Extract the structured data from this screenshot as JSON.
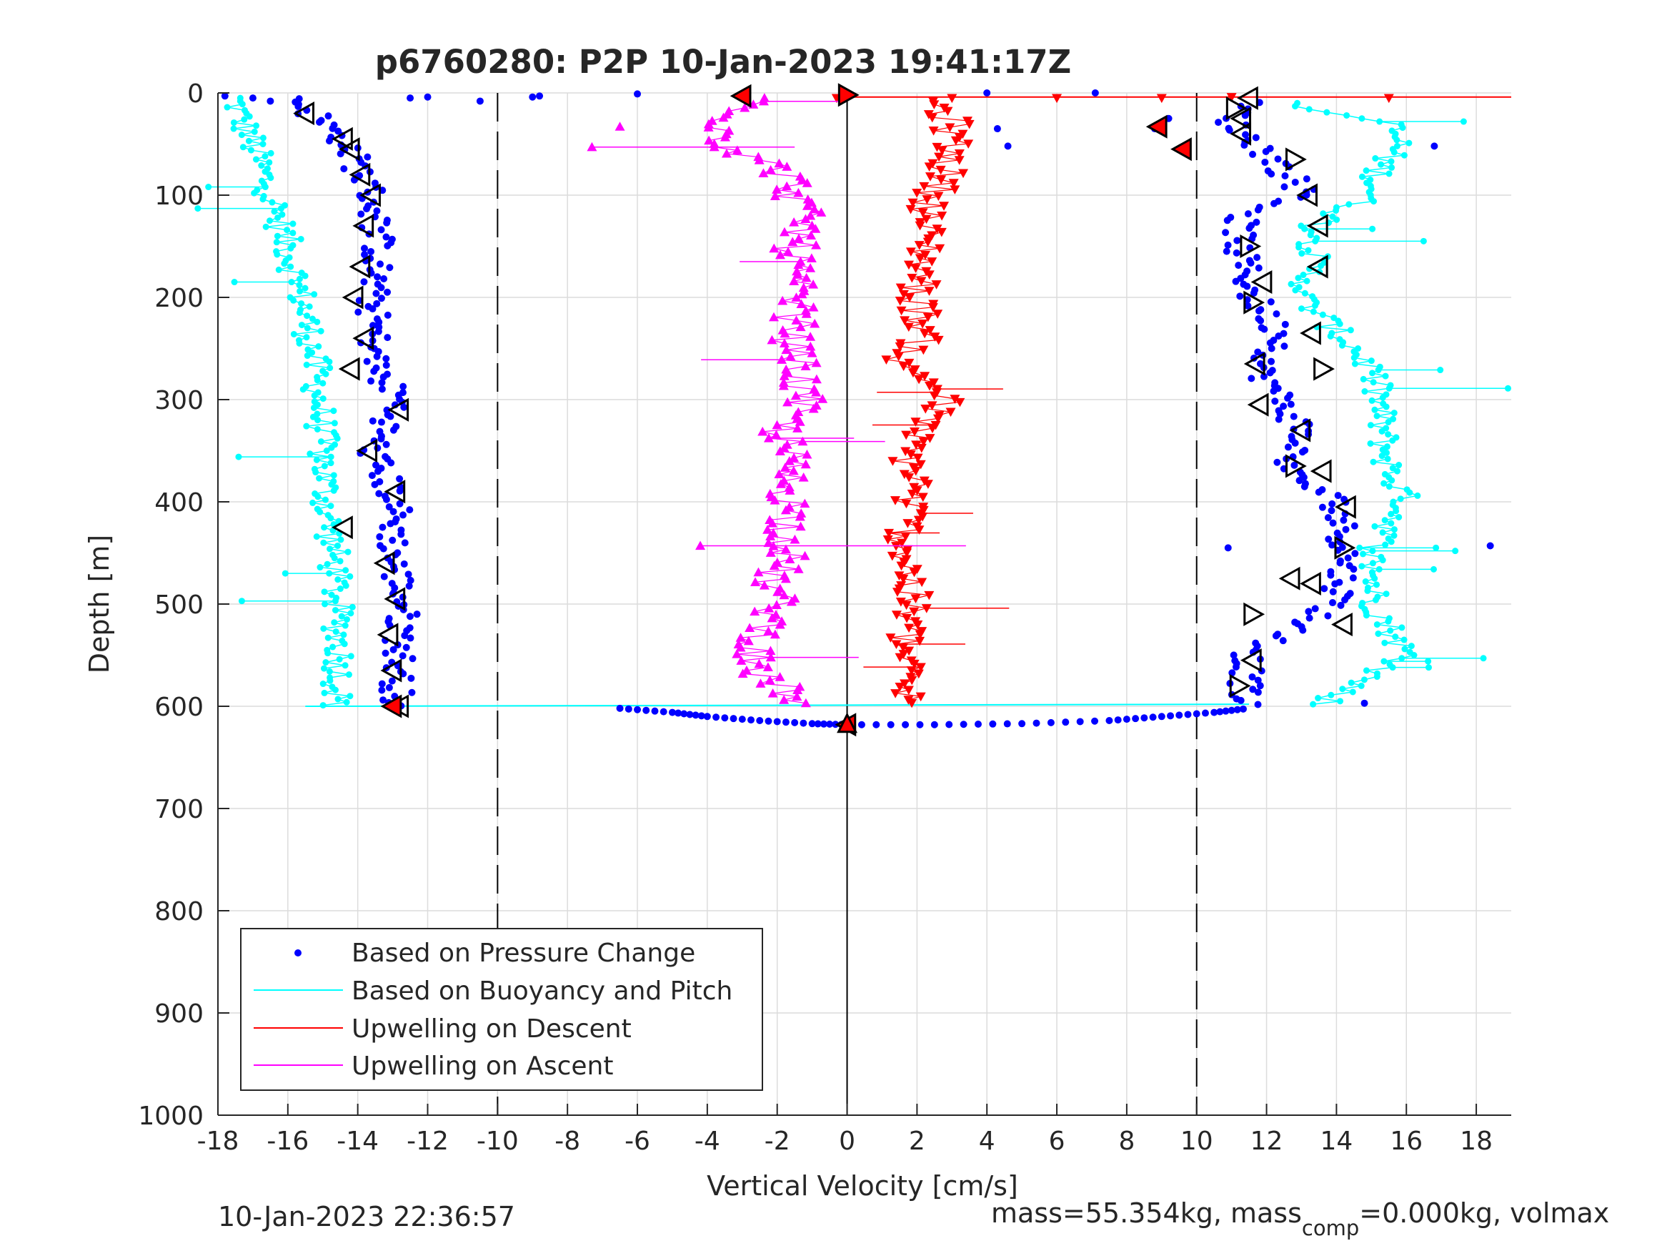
{
  "chart_data": {
    "type": "scatter",
    "title": "p6760280: P2P 10-Jan-2023 19:41:17Z",
    "xlabel": "Vertical Velocity [cm/s]",
    "ylabel": "Depth [m]",
    "xlim": [
      -18,
      19
    ],
    "ylim": [
      0,
      1000
    ],
    "y_reversed": true,
    "grid": true,
    "legend_placement": "bottom-left",
    "x_ticks": [
      "-18",
      "-16",
      "-14",
      "-12",
      "-10",
      "-8",
      "-6",
      "-4",
      "-2",
      "0",
      "2",
      "4",
      "6",
      "8",
      "10",
      "12",
      "14",
      "16",
      "18"
    ],
    "y_ticks": [
      "0",
      "100",
      "200",
      "300",
      "400",
      "500",
      "600",
      "700",
      "800",
      "900",
      "1000"
    ],
    "reference_lines": [
      {
        "x": -10,
        "style": "dashed",
        "color": "#000000"
      },
      {
        "x": 0,
        "style": "solid",
        "color": "#000000"
      },
      {
        "x": 10,
        "style": "dashed",
        "color": "#000000"
      }
    ],
    "legend": [
      {
        "label": "Based on Pressure Change",
        "color": "#0000ff",
        "marker": "dot"
      },
      {
        "label": "Based on Buoyancy and Pitch",
        "color": "#00ffff",
        "marker": "line"
      },
      {
        "label": "Upwelling on Descent",
        "color": "#ff0000",
        "marker": "line"
      },
      {
        "label": "Upwelling on Ascent",
        "color": "#ff00ff",
        "marker": "line"
      }
    ],
    "series": [
      {
        "name": "Based on Pressure Change",
        "color": "#0000ff",
        "profiles": [
          {
            "segment": "descent",
            "depth": [
              5,
              50,
              100,
              150,
              200,
              250,
              270,
              300,
              350,
              400,
              450,
              500,
              550,
              600
            ],
            "velocity": [
              -15.8,
              -14.3,
              -13.6,
              -13.4,
              -13.6,
              -13.5,
              -13.5,
              -12.8,
              -13.6,
              -12.9,
              -13.0,
              -12.7,
              -12.8,
              -12.9
            ]
          },
          {
            "segment": "bottom-turn",
            "depth": [
              602,
              606,
              610,
              614,
              617,
              618,
              618,
              617,
              614,
              610,
              606,
              602
            ],
            "velocity": [
              -6.5,
              -5.0,
              -4.0,
              -2.5,
              -1.0,
              0.0,
              2.5,
              5.0,
              7.5,
              9.0,
              10.5,
              11.5
            ]
          },
          {
            "segment": "ascent",
            "depth": [
              600,
              550,
              500,
              450,
              400,
              370,
              330,
              300,
              270,
              240,
              200,
              150,
              120,
              100,
              70,
              50,
              30,
              10
            ],
            "velocity": [
              11.3,
              11.5,
              14.0,
              14.3,
              14.0,
              12.6,
              13.0,
              12.4,
              11.8,
              12.5,
              11.6,
              11.2,
              11.3,
              13.2,
              12.3,
              11.7,
              11.0,
              11.4
            ]
          }
        ]
      },
      {
        "name": "Based on Buoyancy and Pitch",
        "color": "#00ffff",
        "profiles": [
          {
            "segment": "descent",
            "depth": [
              5,
              20,
              50,
              100,
              150,
              200,
              250,
              300,
              350,
              400,
              450,
              500,
              550,
              600
            ],
            "velocity": [
              -17.5,
              -17.4,
              -17.0,
              -16.5,
              -16.0,
              -15.6,
              -15.3,
              -15.1,
              -15.0,
              -14.9,
              -14.7,
              -14.6,
              -14.5,
              -14.6
            ]
          },
          {
            "segment": "ascent",
            "depth": [
              600,
              550,
              500,
              450,
              400,
              370,
              330,
              300,
              270,
              250,
              200,
              170,
              130,
              100,
              70,
              50,
              30,
              10
            ],
            "velocity": [
              13.5,
              16.0,
              15.1,
              15.0,
              16.0,
              15.5,
              15.3,
              15.2,
              15.0,
              14.5,
              13.0,
              13.3,
              13.4,
              15.0,
              15.3,
              15.8,
              15.5,
              12.5
            ]
          }
        ]
      },
      {
        "name": "Upwelling on Descent",
        "color": "#ff0000",
        "depth": [
          10,
          30,
          50,
          80,
          100,
          130,
          150,
          180,
          200,
          230,
          250,
          265,
          280,
          300,
          330,
          350,
          380,
          400,
          430,
          450,
          480,
          500,
          530,
          560,
          590
        ],
        "velocity": [
          2.5,
          3.0,
          3.0,
          2.8,
          2.5,
          2.2,
          2.3,
          2.1,
          2.0,
          2.2,
          2.0,
          1.3,
          2.4,
          2.8,
          2.0,
          1.7,
          2.0,
          1.8,
          1.7,
          1.7,
          1.8,
          1.8,
          1.7,
          1.6,
          1.7
        ]
      },
      {
        "name": "Upwelling on Ascent",
        "color": "#ff00ff",
        "depth": [
          10,
          30,
          50,
          70,
          90,
          100,
          130,
          150,
          180,
          200,
          230,
          250,
          270,
          300,
          330,
          350,
          380,
          400,
          430,
          450,
          480,
          500,
          530,
          560,
          590
        ],
        "velocity": [
          -2.5,
          -3.5,
          -3.5,
          -2.2,
          -1.5,
          -1.5,
          -1.2,
          -1.5,
          -1.6,
          -1.5,
          -1.5,
          -1.6,
          -1.4,
          -1.3,
          -1.9,
          -1.7,
          -1.7,
          -1.6,
          -1.7,
          -1.7,
          -2.2,
          -2.0,
          -2.4,
          -2.9,
          -1.5
        ]
      }
    ],
    "markers": {
      "open_triangles_descent_x": [
        -15.5,
        -14.4,
        -14.2,
        -13.9,
        -13.6,
        -13.8,
        -13.9,
        -14.1,
        -13.8,
        -14.2,
        -12.8,
        -13.7,
        -12.9,
        -14.4,
        -13.2,
        -12.9,
        -13.1,
        -13.0,
        -12.8
      ],
      "open_triangles_descent_depth": [
        20,
        45,
        55,
        80,
        100,
        130,
        170,
        200,
        240,
        270,
        310,
        350,
        390,
        425,
        460,
        495,
        530,
        565,
        600
      ],
      "open_triangles_ascent_x": [
        11.5,
        11.1,
        11.3,
        11.3,
        12.8,
        13.2,
        13.5,
        11.5,
        13.5,
        11.9,
        11.6,
        13.3,
        11.7,
        13.6,
        11.8,
        13.0,
        12.8,
        13.6,
        14.3,
        14.2,
        13.3,
        12.7,
        11.6,
        14.2,
        11.6,
        11.2
      ],
      "open_triangles_ascent_depth": [
        5,
        15,
        25,
        40,
        65,
        100,
        130,
        150,
        170,
        185,
        205,
        235,
        265,
        270,
        305,
        330,
        365,
        370,
        405,
        445,
        480,
        475,
        510,
        520,
        555,
        580
      ],
      "red_filled_triangles": [
        {
          "x": -3.0,
          "depth": 3
        },
        {
          "x": 0.0,
          "depth": 2
        },
        {
          "x": 8.9,
          "depth": 33
        },
        {
          "x": 9.6,
          "depth": 55
        },
        {
          "x": -13.0,
          "depth": 600
        },
        {
          "x": 0.0,
          "depth": 618
        }
      ]
    },
    "footer_left": "10-Jan-2023 22:36:57",
    "footer_right_prefix": "mass=55.354kg, mass",
    "footer_right_sub": "comp",
    "footer_right_suffix": "=0.000kg, volmax"
  }
}
